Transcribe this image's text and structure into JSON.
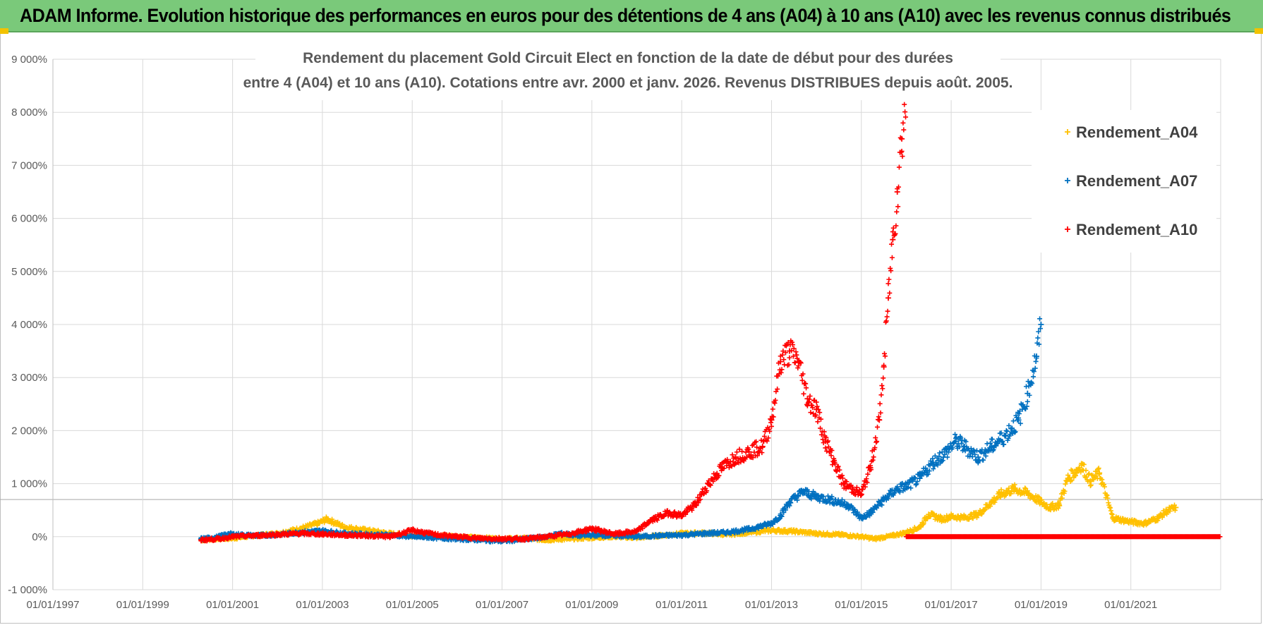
{
  "banner": {
    "title": "ADAM Informe. Evolution historique des performances en euros pour des détentions de 4 ans (A04) à 10 ans (A10) avec les revenus connus distribués",
    "background": "#7ac97a"
  },
  "chart_data": {
    "type": "scatter",
    "title_lines": [
      "Rendement du placement Gold Circuit Elect  en fonction de la date de début pour des durées",
      "entre 4 (A04) et 10 ans (A10). Cotations entre avr. 2000 et janv. 2026. Revenus DISTRIBUES depuis août. 2005."
    ],
    "xlabel": "",
    "ylabel": "",
    "xlim": [
      1997.0,
      2023.0
    ],
    "ylim": [
      -1000,
      9000
    ],
    "ytick_values": [
      -1000,
      0,
      1000,
      2000,
      3000,
      4000,
      5000,
      6000,
      7000,
      8000,
      9000
    ],
    "ytick_labels": [
      "-1 000%",
      "0%",
      "1 000%",
      "2 000%",
      "3 000%",
      "4 000%",
      "5 000%",
      "6 000%",
      "7 000%",
      "8 000%",
      "9 000%"
    ],
    "xtick_values": [
      1997,
      1999,
      2001,
      2003,
      2005,
      2007,
      2009,
      2011,
      2013,
      2015,
      2017,
      2019,
      2021
    ],
    "xtick_labels": [
      "01/01/1997",
      "01/01/1999",
      "01/01/2001",
      "01/01/2003",
      "01/01/2005",
      "01/01/2007",
      "01/01/2009",
      "01/01/2011",
      "01/01/2013",
      "01/01/2015",
      "01/01/2017",
      "01/01/2019",
      "01/01/2021"
    ],
    "extra_hline": 700,
    "grid": true,
    "legend_position": "top-right",
    "marker": "+",
    "series": [
      {
        "name": "Rendement_A04",
        "color": "#ffc000",
        "x": [
          2000.3,
          2000.6,
          2001.0,
          2001.5,
          2002.0,
          2002.5,
          2002.9,
          2003.1,
          2003.5,
          2004.0,
          2004.5,
          2005.0,
          2005.5,
          2006.0,
          2006.5,
          2007.0,
          2007.5,
          2008.0,
          2008.5,
          2009.0,
          2009.5,
          2010.0,
          2010.5,
          2011.0,
          2011.5,
          2012.0,
          2012.5,
          2013.0,
          2013.5,
          2014.0,
          2014.5,
          2015.0,
          2015.3,
          2015.7,
          2016.0,
          2016.3,
          2016.5,
          2016.8,
          2017.0,
          2017.3,
          2017.6,
          2017.9,
          2018.1,
          2018.4,
          2018.7,
          2019.0,
          2019.2,
          2019.4,
          2019.6,
          2019.8,
          2019.9,
          2020.1,
          2020.3,
          2020.6,
          2021.0,
          2021.3,
          2021.6,
          2021.8,
          2022.0
        ],
        "y": [
          -60,
          -40,
          -30,
          20,
          60,
          150,
          250,
          330,
          180,
          120,
          60,
          20,
          40,
          0,
          -20,
          -40,
          -30,
          -60,
          -40,
          -20,
          0,
          -20,
          20,
          60,
          70,
          40,
          80,
          120,
          100,
          60,
          40,
          0,
          -40,
          20,
          80,
          180,
          420,
          330,
          380,
          360,
          420,
          650,
          800,
          900,
          820,
          650,
          550,
          600,
          1100,
          1250,
          1350,
          1050,
          1200,
          350,
          280,
          250,
          350,
          480,
          550
        ]
      },
      {
        "name": "Rendement_A07",
        "color": "#0070c0",
        "x": [
          2000.3,
          2000.6,
          2000.9,
          2001.5,
          2002.0,
          2002.5,
          2003.0,
          2003.5,
          2004.0,
          2004.5,
          2005.0,
          2005.5,
          2006.0,
          2006.5,
          2007.0,
          2007.5,
          2008.0,
          2008.3,
          2008.7,
          2009.0,
          2009.5,
          2010.0,
          2010.5,
          2011.0,
          2011.5,
          2012.0,
          2012.5,
          2013.0,
          2013.2,
          2013.4,
          2013.7,
          2014.0,
          2014.3,
          2014.7,
          2015.0,
          2015.2,
          2015.5,
          2015.8,
          2016.0,
          2016.3,
          2016.6,
          2016.9,
          2017.1,
          2017.3,
          2017.6,
          2017.9,
          2018.2,
          2018.5,
          2018.7,
          2018.9,
          2019.0
        ],
        "y": [
          -40,
          -20,
          50,
          20,
          40,
          80,
          110,
          60,
          40,
          30,
          0,
          -20,
          -40,
          -60,
          -80,
          -50,
          0,
          60,
          20,
          30,
          20,
          0,
          20,
          30,
          60,
          80,
          140,
          250,
          400,
          650,
          850,
          750,
          700,
          600,
          350,
          450,
          700,
          900,
          950,
          1100,
          1400,
          1600,
          1800,
          1700,
          1500,
          1700,
          1900,
          2200,
          2700,
          3400,
          4000
        ]
      },
      {
        "name": "Rendement_A10",
        "color": "#ff0000",
        "x": [
          2000.3,
          2000.7,
          2001.0,
          2001.5,
          2002.0,
          2002.5,
          2003.0,
          2003.5,
          2004.0,
          2004.5,
          2005.0,
          2005.5,
          2006.0,
          2006.5,
          2007.0,
          2007.5,
          2008.0,
          2008.5,
          2009.0,
          2009.5,
          2010.0,
          2010.3,
          2010.7,
          2011.0,
          2011.3,
          2011.6,
          2011.9,
          2012.2,
          2012.5,
          2012.8,
          2013.0,
          2013.2,
          2013.4,
          2013.6,
          2013.8,
          2014.0,
          2014.2,
          2014.4,
          2014.6,
          2014.8,
          2015.0,
          2015.2,
          2015.4,
          2015.5,
          2015.6,
          2015.7,
          2015.8,
          2015.9,
          2016.0
        ],
        "y": [
          -60,
          -40,
          0,
          20,
          40,
          60,
          50,
          30,
          20,
          0,
          120,
          40,
          0,
          -30,
          -40,
          -40,
          0,
          50,
          150,
          50,
          100,
          300,
          450,
          400,
          600,
          1000,
          1300,
          1500,
          1600,
          1700,
          2200,
          3300,
          3500,
          3300,
          2600,
          2400,
          1800,
          1400,
          1000,
          900,
          800,
          1300,
          2200,
          3200,
          4500,
          5600,
          6500,
          7500,
          8300
        ]
      }
    ],
    "a10_flat_segment": {
      "x_start": 2016.0,
      "x_end": 2023.0,
      "y": 0
    }
  }
}
